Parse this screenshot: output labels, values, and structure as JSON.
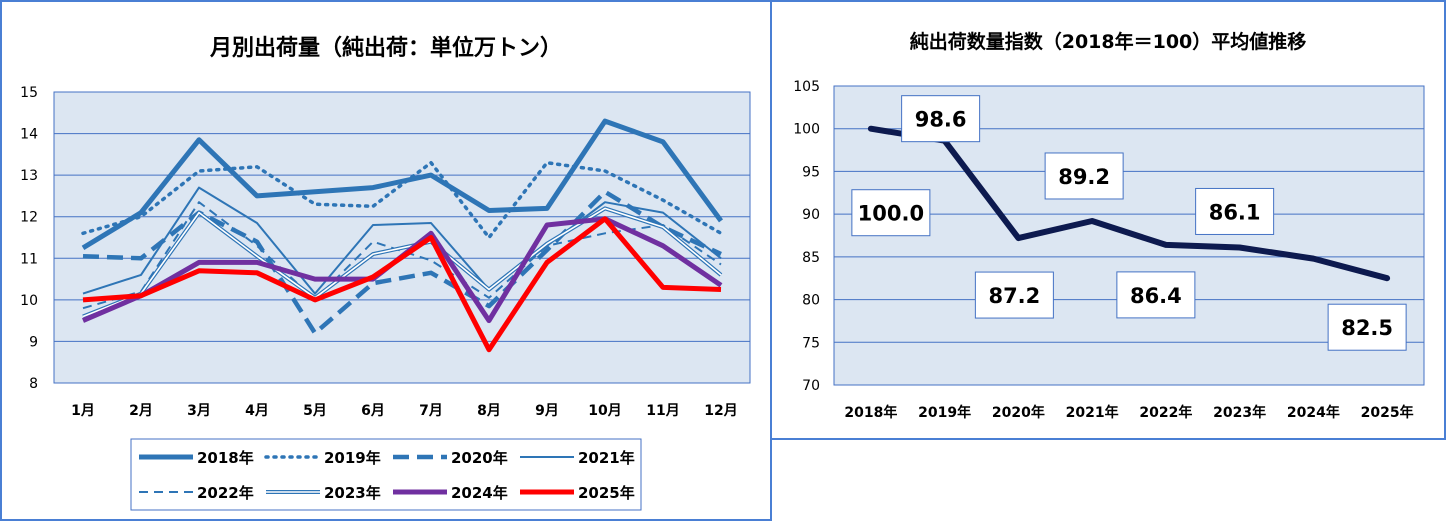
{
  "chart_data": [
    {
      "type": "line",
      "title": "月別出荷量（純出荷：単位万トン）",
      "categories": [
        "1月",
        "2月",
        "3月",
        "4月",
        "5月",
        "6月",
        "7月",
        "8月",
        "9月",
        "10月",
        "11月",
        "12月"
      ],
      "ylim": [
        8,
        15
      ],
      "yticks": [
        "8",
        "9",
        "10",
        "11",
        "12",
        "13",
        "14",
        "15"
      ],
      "grid": true,
      "legend_position": "bottom",
      "series": [
        {
          "name": "2018年",
          "color": "#2e75b6",
          "style": "thick",
          "values": [
            11.25,
            12.1,
            13.85,
            12.5,
            12.6,
            12.7,
            13.0,
            12.15,
            12.2,
            14.3,
            13.8,
            11.9
          ]
        },
        {
          "name": "2019年",
          "color": "#2e75b6",
          "style": "dotted",
          "values": [
            11.6,
            12.0,
            13.1,
            13.2,
            12.3,
            12.25,
            13.3,
            11.5,
            13.3,
            13.1,
            12.4,
            11.6
          ]
        },
        {
          "name": "2020年",
          "color": "#2e75b6",
          "style": "dashed",
          "values": [
            11.05,
            11.0,
            12.1,
            11.4,
            9.2,
            10.4,
            10.65,
            9.85,
            11.2,
            12.6,
            11.75,
            11.1
          ]
        },
        {
          "name": "2021年",
          "color": "#2e75b6",
          "style": "thin",
          "values": [
            10.15,
            10.6,
            12.7,
            11.85,
            10.15,
            11.8,
            11.85,
            10.25,
            11.3,
            12.35,
            12.1,
            11.0
          ]
        },
        {
          "name": "2022年",
          "color": "#2e75b6",
          "style": "thin-dashed",
          "values": [
            9.8,
            10.2,
            12.35,
            11.3,
            10.0,
            11.4,
            10.95,
            10.05,
            11.3,
            11.6,
            11.8,
            10.85
          ]
        },
        {
          "name": "2023年",
          "color": "#2e75b6",
          "style": "double",
          "values": [
            9.6,
            10.15,
            12.1,
            11.05,
            10.05,
            11.1,
            11.4,
            10.25,
            11.35,
            12.2,
            11.75,
            10.6
          ]
        },
        {
          "name": "2024年",
          "color": "#7030a0",
          "style": "thick",
          "values": [
            9.5,
            10.1,
            10.9,
            10.9,
            10.5,
            10.5,
            11.6,
            9.5,
            11.8,
            11.95,
            11.3,
            10.35
          ]
        },
        {
          "name": "2025年",
          "color": "#ff0000",
          "style": "thick",
          "values": [
            10.0,
            10.1,
            10.7,
            10.65,
            10.0,
            10.55,
            11.5,
            8.8,
            10.9,
            11.95,
            10.3,
            10.25
          ]
        }
      ]
    },
    {
      "type": "line",
      "title": "純出荷数量指数（2018年＝100）平均値推移",
      "categories": [
        "2018年",
        "2019年",
        "2020年",
        "2021年",
        "2022年",
        "2023年",
        "2024年",
        "2025年"
      ],
      "ylim": [
        70,
        105
      ],
      "yticks": [
        "70",
        "75",
        "80",
        "85",
        "90",
        "95",
        "100",
        "105"
      ],
      "grid": true,
      "series": [
        {
          "color": "#0d1a4f",
          "values": [
            100.0,
            98.6,
            87.2,
            89.2,
            86.4,
            86.1,
            84.8,
            82.5
          ]
        }
      ],
      "data_labels": [
        {
          "index": 0,
          "text": "100.0"
        },
        {
          "index": 1,
          "text": "98.6"
        },
        {
          "index": 2,
          "text": "87.2"
        },
        {
          "index": 3,
          "text": "89.2"
        },
        {
          "index": 4,
          "text": "86.4"
        },
        {
          "index": 5,
          "text": "86.1"
        },
        {
          "index": 7,
          "text": "82.5"
        }
      ]
    }
  ]
}
